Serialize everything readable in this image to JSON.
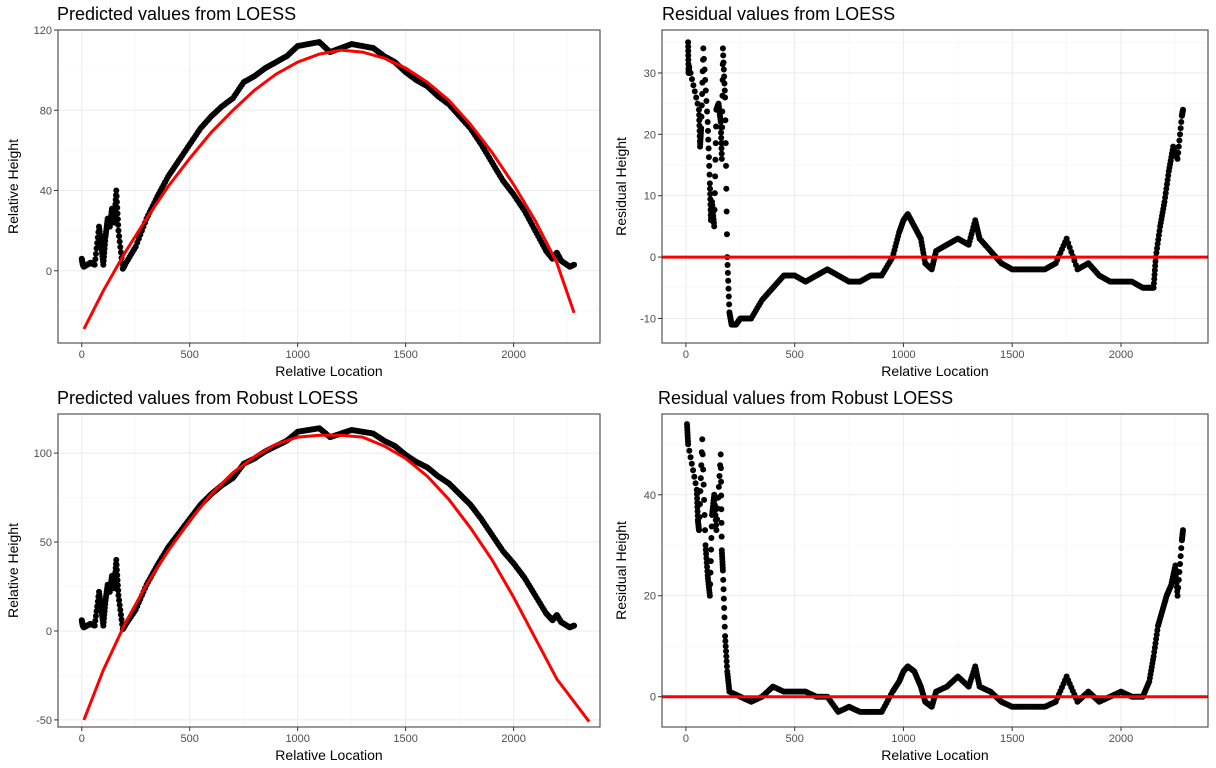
{
  "colors": {
    "points": "#000000",
    "fit": "#ff0000",
    "grid_major": "#ebebeb",
    "grid_minor": "#f5f5f5",
    "frame": "#333333"
  },
  "chart_data": [
    {
      "type": "scatter",
      "title": "Predicted values from LOESS",
      "xlabel": "Relative Location",
      "ylabel": "Relative Height",
      "xlim": [
        -110,
        2400
      ],
      "ylim": [
        -36,
        120
      ],
      "xticks": [
        0,
        500,
        1000,
        1500,
        2000
      ],
      "yticks": [
        0,
        40,
        80,
        120
      ],
      "points": [
        [
          0,
          6
        ],
        [
          5,
          3
        ],
        [
          10,
          2
        ],
        [
          40,
          4
        ],
        [
          60,
          3
        ],
        [
          80,
          22
        ],
        [
          90,
          13
        ],
        [
          100,
          3
        ],
        [
          110,
          17
        ],
        [
          120,
          26
        ],
        [
          130,
          22
        ],
        [
          140,
          31
        ],
        [
          150,
          24
        ],
        [
          160,
          40
        ],
        [
          170,
          20
        ],
        [
          190,
          1
        ],
        [
          200,
          3
        ],
        [
          250,
          12
        ],
        [
          300,
          26
        ],
        [
          350,
          37
        ],
        [
          400,
          47
        ],
        [
          450,
          55
        ],
        [
          500,
          63
        ],
        [
          550,
          71
        ],
        [
          600,
          77
        ],
        [
          650,
          82
        ],
        [
          700,
          86
        ],
        [
          750,
          94
        ],
        [
          800,
          97
        ],
        [
          850,
          101
        ],
        [
          900,
          104
        ],
        [
          950,
          107
        ],
        [
          1000,
          112
        ],
        [
          1050,
          113
        ],
        [
          1100,
          114
        ],
        [
          1150,
          109
        ],
        [
          1200,
          111
        ],
        [
          1250,
          113
        ],
        [
          1300,
          112
        ],
        [
          1350,
          111
        ],
        [
          1400,
          107
        ],
        [
          1450,
          104
        ],
        [
          1500,
          99
        ],
        [
          1550,
          95
        ],
        [
          1600,
          92
        ],
        [
          1650,
          87
        ],
        [
          1700,
          83
        ],
        [
          1750,
          77
        ],
        [
          1800,
          71
        ],
        [
          1850,
          63
        ],
        [
          1900,
          54
        ],
        [
          1950,
          45
        ],
        [
          2000,
          38
        ],
        [
          2050,
          30
        ],
        [
          2100,
          20
        ],
        [
          2150,
          10
        ],
        [
          2180,
          6
        ],
        [
          2200,
          9
        ],
        [
          2220,
          5
        ],
        [
          2260,
          2
        ],
        [
          2280,
          3
        ]
      ],
      "fit_line": [
        [
          10,
          -29
        ],
        [
          100,
          -10
        ],
        [
          200,
          9
        ],
        [
          300,
          26
        ],
        [
          400,
          42
        ],
        [
          500,
          56
        ],
        [
          600,
          69
        ],
        [
          700,
          80
        ],
        [
          800,
          90
        ],
        [
          900,
          98
        ],
        [
          1000,
          104
        ],
        [
          1100,
          108
        ],
        [
          1200,
          110
        ],
        [
          1300,
          109
        ],
        [
          1400,
          106
        ],
        [
          1500,
          101
        ],
        [
          1600,
          94
        ],
        [
          1700,
          85
        ],
        [
          1800,
          73
        ],
        [
          1900,
          59
        ],
        [
          2000,
          43
        ],
        [
          2100,
          25
        ],
        [
          2200,
          4
        ],
        [
          2280,
          -21
        ]
      ]
    },
    {
      "type": "scatter",
      "title": "Residual values from LOESS",
      "xlabel": "Relative Location",
      "ylabel": "Residual Height",
      "xlim": [
        -110,
        2400
      ],
      "ylim": [
        -14,
        37
      ],
      "xticks": [
        0,
        500,
        1000,
        1500,
        2000
      ],
      "yticks": [
        -10,
        0,
        10,
        20,
        30
      ],
      "hline": 0,
      "points": [
        [
          10,
          35
        ],
        [
          12,
          30
        ],
        [
          15,
          31
        ],
        [
          60,
          24
        ],
        [
          65,
          18
        ],
        [
          70,
          21
        ],
        [
          80,
          34
        ],
        [
          100,
          22
        ],
        [
          110,
          12
        ],
        [
          115,
          6
        ],
        [
          120,
          9
        ],
        [
          130,
          5
        ],
        [
          140,
          24
        ],
        [
          150,
          25
        ],
        [
          160,
          22
        ],
        [
          165,
          16
        ],
        [
          170,
          34
        ],
        [
          180,
          26
        ],
        [
          190,
          0
        ],
        [
          200,
          -9
        ],
        [
          210,
          -11
        ],
        [
          230,
          -11
        ],
        [
          250,
          -10
        ],
        [
          300,
          -10
        ],
        [
          350,
          -7
        ],
        [
          400,
          -5
        ],
        [
          450,
          -3
        ],
        [
          500,
          -3
        ],
        [
          550,
          -4
        ],
        [
          600,
          -3
        ],
        [
          650,
          -2
        ],
        [
          700,
          -3
        ],
        [
          750,
          -4
        ],
        [
          800,
          -4
        ],
        [
          850,
          -3
        ],
        [
          900,
          -3
        ],
        [
          950,
          0
        ],
        [
          980,
          4
        ],
        [
          1000,
          6
        ],
        [
          1020,
          7
        ],
        [
          1050,
          5
        ],
        [
          1080,
          3
        ],
        [
          1100,
          -1
        ],
        [
          1130,
          -2
        ],
        [
          1150,
          1
        ],
        [
          1200,
          2
        ],
        [
          1250,
          3
        ],
        [
          1300,
          2
        ],
        [
          1330,
          6
        ],
        [
          1350,
          3
        ],
        [
          1400,
          1
        ],
        [
          1450,
          -1
        ],
        [
          1500,
          -2
        ],
        [
          1550,
          -2
        ],
        [
          1600,
          -2
        ],
        [
          1650,
          -2
        ],
        [
          1700,
          -1
        ],
        [
          1750,
          3
        ],
        [
          1800,
          -2
        ],
        [
          1850,
          -1
        ],
        [
          1900,
          -3
        ],
        [
          1950,
          -4
        ],
        [
          2000,
          -4
        ],
        [
          2050,
          -4
        ],
        [
          2100,
          -5
        ],
        [
          2130,
          -5
        ],
        [
          2150,
          -5
        ],
        [
          2160,
          0
        ],
        [
          2180,
          5
        ],
        [
          2200,
          9
        ],
        [
          2220,
          14
        ],
        [
          2240,
          18
        ],
        [
          2260,
          16
        ],
        [
          2280,
          23
        ],
        [
          2285,
          24
        ]
      ]
    },
    {
      "type": "scatter",
      "title": "Predicted values from Robust LOESS",
      "xlabel": "Relative Location",
      "ylabel": "Relative Height",
      "xlim": [
        -110,
        2400
      ],
      "ylim": [
        -54,
        122
      ],
      "xticks": [
        0,
        500,
        1000,
        1500,
        2000
      ],
      "yticks": [
        -50,
        0,
        50,
        100
      ],
      "points": [
        [
          0,
          6
        ],
        [
          5,
          3
        ],
        [
          10,
          2
        ],
        [
          40,
          4
        ],
        [
          60,
          3
        ],
        [
          80,
          22
        ],
        [
          90,
          13
        ],
        [
          100,
          3
        ],
        [
          110,
          17
        ],
        [
          120,
          26
        ],
        [
          130,
          22
        ],
        [
          140,
          31
        ],
        [
          150,
          24
        ],
        [
          160,
          40
        ],
        [
          170,
          20
        ],
        [
          190,
          1
        ],
        [
          200,
          3
        ],
        [
          250,
          12
        ],
        [
          300,
          26
        ],
        [
          350,
          37
        ],
        [
          400,
          47
        ],
        [
          450,
          55
        ],
        [
          500,
          63
        ],
        [
          550,
          71
        ],
        [
          600,
          77
        ],
        [
          650,
          82
        ],
        [
          700,
          86
        ],
        [
          750,
          94
        ],
        [
          800,
          97
        ],
        [
          850,
          101
        ],
        [
          900,
          104
        ],
        [
          950,
          107
        ],
        [
          1000,
          112
        ],
        [
          1050,
          113
        ],
        [
          1100,
          114
        ],
        [
          1150,
          109
        ],
        [
          1200,
          111
        ],
        [
          1250,
          113
        ],
        [
          1300,
          112
        ],
        [
          1350,
          111
        ],
        [
          1400,
          107
        ],
        [
          1450,
          104
        ],
        [
          1500,
          99
        ],
        [
          1550,
          95
        ],
        [
          1600,
          92
        ],
        [
          1650,
          87
        ],
        [
          1700,
          83
        ],
        [
          1750,
          77
        ],
        [
          1800,
          71
        ],
        [
          1850,
          63
        ],
        [
          1900,
          54
        ],
        [
          1950,
          45
        ],
        [
          2000,
          38
        ],
        [
          2050,
          30
        ],
        [
          2100,
          20
        ],
        [
          2150,
          10
        ],
        [
          2180,
          6
        ],
        [
          2200,
          9
        ],
        [
          2220,
          5
        ],
        [
          2260,
          2
        ],
        [
          2280,
          3
        ]
      ],
      "fit_line": [
        [
          10,
          -50
        ],
        [
          100,
          -22
        ],
        [
          200,
          4
        ],
        [
          300,
          26
        ],
        [
          400,
          45
        ],
        [
          500,
          62
        ],
        [
          600,
          77
        ],
        [
          700,
          89
        ],
        [
          800,
          98
        ],
        [
          900,
          105
        ],
        [
          1000,
          109
        ],
        [
          1100,
          110
        ],
        [
          1200,
          110
        ],
        [
          1300,
          109
        ],
        [
          1400,
          104
        ],
        [
          1500,
          97
        ],
        [
          1600,
          87
        ],
        [
          1700,
          74
        ],
        [
          1800,
          58
        ],
        [
          1900,
          40
        ],
        [
          2000,
          19
        ],
        [
          2100,
          -4
        ],
        [
          2200,
          -27
        ],
        [
          2350,
          -51
        ]
      ]
    },
    {
      "type": "scatter",
      "title": "Residual values from Robust LOESS",
      "xlabel": "Relative Location",
      "ylabel": "Residual Height",
      "xlim": [
        -110,
        2400
      ],
      "ylim": [
        -6,
        56
      ],
      "xticks": [
        0,
        500,
        1000,
        1500,
        2000
      ],
      "yticks": [
        0,
        20,
        40
      ],
      "hline": 0,
      "points": [
        [
          5,
          54
        ],
        [
          10,
          50
        ],
        [
          50,
          41
        ],
        [
          55,
          35
        ],
        [
          60,
          33
        ],
        [
          75,
          51
        ],
        [
          90,
          30
        ],
        [
          100,
          24
        ],
        [
          110,
          20
        ],
        [
          120,
          36
        ],
        [
          130,
          40
        ],
        [
          140,
          33
        ],
        [
          160,
          48
        ],
        [
          165,
          29
        ],
        [
          170,
          25
        ],
        [
          180,
          12
        ],
        [
          190,
          5
        ],
        [
          200,
          1
        ],
        [
          250,
          0
        ],
        [
          300,
          -1
        ],
        [
          350,
          0
        ],
        [
          400,
          2
        ],
        [
          450,
          1
        ],
        [
          500,
          1
        ],
        [
          550,
          1
        ],
        [
          600,
          0
        ],
        [
          650,
          0
        ],
        [
          700,
          -3
        ],
        [
          750,
          -2
        ],
        [
          800,
          -3
        ],
        [
          850,
          -3
        ],
        [
          900,
          -3
        ],
        [
          950,
          1
        ],
        [
          980,
          3
        ],
        [
          1000,
          5
        ],
        [
          1020,
          6
        ],
        [
          1050,
          5
        ],
        [
          1080,
          2
        ],
        [
          1100,
          -1
        ],
        [
          1130,
          -2
        ],
        [
          1150,
          1
        ],
        [
          1200,
          2
        ],
        [
          1250,
          4
        ],
        [
          1300,
          2
        ],
        [
          1330,
          6
        ],
        [
          1350,
          2
        ],
        [
          1400,
          1
        ],
        [
          1450,
          -1
        ],
        [
          1500,
          -2
        ],
        [
          1550,
          -2
        ],
        [
          1600,
          -2
        ],
        [
          1650,
          -2
        ],
        [
          1700,
          -1
        ],
        [
          1750,
          4
        ],
        [
          1800,
          -1
        ],
        [
          1850,
          1
        ],
        [
          1900,
          -1
        ],
        [
          1950,
          0
        ],
        [
          2000,
          1
        ],
        [
          2050,
          0
        ],
        [
          2100,
          0
        ],
        [
          2130,
          3
        ],
        [
          2150,
          8
        ],
        [
          2170,
          14
        ],
        [
          2190,
          17
        ],
        [
          2210,
          20
        ],
        [
          2230,
          22
        ],
        [
          2250,
          26
        ],
        [
          2260,
          20
        ],
        [
          2280,
          31
        ],
        [
          2285,
          33
        ]
      ]
    }
  ]
}
